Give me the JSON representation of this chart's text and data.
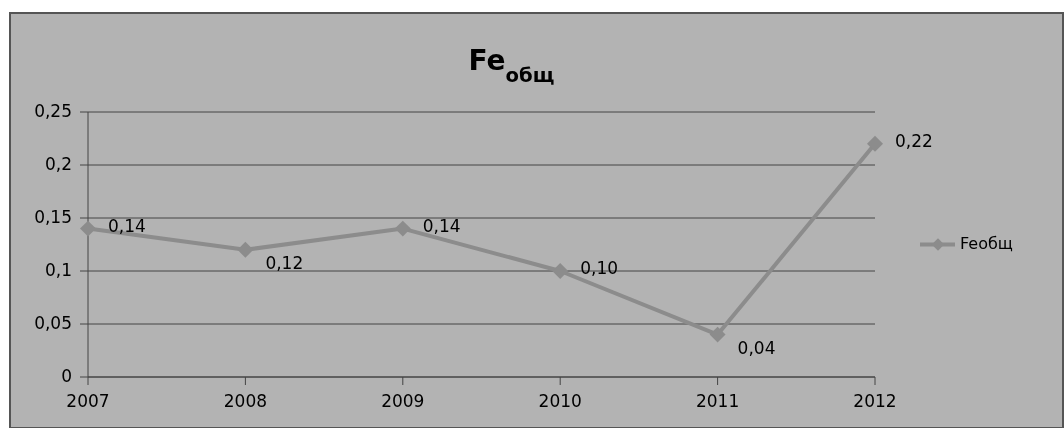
{
  "chart_data": {
    "type": "line",
    "title": "Fe$_{общ}$",
    "categories": [
      "2007",
      "2008",
      "2009",
      "2010",
      "2011",
      "2012"
    ],
    "series": [
      {
        "name": "Feобщ",
        "color": "#8c8c8c",
        "values": [
          0.14,
          0.12,
          0.14,
          0.1,
          0.04,
          0.22
        ],
        "value_labels": [
          "0,14",
          "0,12",
          "0,14",
          "0,10",
          "0,04",
          "0,22"
        ]
      }
    ],
    "ylim": [
      0,
      0.25
    ],
    "yticks": [
      {
        "value": 0,
        "label": "0"
      },
      {
        "value": 0.05,
        "label": "0,05"
      },
      {
        "value": 0.1,
        "label": "0,1"
      },
      {
        "value": 0.15,
        "label": "0,15"
      },
      {
        "value": 0.2,
        "label": "0,2"
      },
      {
        "value": 0.25,
        "label": "0,25"
      }
    ],
    "grid": "y",
    "legend": "right",
    "marker": "diamond",
    "line_style": "solid"
  }
}
